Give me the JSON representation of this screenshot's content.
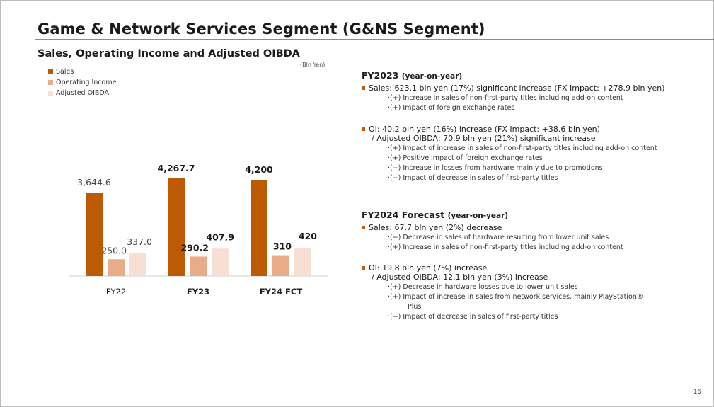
{
  "page": {
    "title": "Game & Network Services Segment (G&NS Segment)",
    "subtitle": "Sales, Operating Income and Adjusted OIBDA",
    "unit": "(Bln Yen)",
    "page_number": "16"
  },
  "colors": {
    "sales": "#bd5b05",
    "oi": "#e7ad89",
    "oibda": "#f7e0d3",
    "bullet": "#c05a07"
  },
  "legend": [
    "Sales",
    "Operating Income",
    "Adjusted OIBDA"
  ],
  "chart_data": {
    "type": "bar",
    "categories": [
      "FY22",
      "FY23",
      "FY24 FCT"
    ],
    "series": [
      {
        "name": "Sales",
        "values": [
          3644.6,
          4267.7,
          4200
        ],
        "labels": [
          "3,644.6",
          "4,267.7",
          "4,200"
        ]
      },
      {
        "name": "Operating Income",
        "values": [
          250.0,
          290.2,
          310
        ],
        "labels": [
          "250.0",
          "290.2",
          "310"
        ]
      },
      {
        "name": "Adjusted OIBDA",
        "values": [
          337.0,
          407.9,
          420
        ],
        "labels": [
          "337.0",
          "407.9",
          "420"
        ]
      }
    ],
    "bold_categories": [
      false,
      true,
      true
    ],
    "grid": false,
    "legend_position": "top-left"
  },
  "fy2023": {
    "heading": "FY2023",
    "heading_small": "(year-on-year)",
    "sales": {
      "text": "Sales: 623.1 bln yen (17%) significant increase (FX Impact: +278.9 bln yen)",
      "points": [
        "·(+) Increase in sales of non-first-party titles including add-on content",
        "·(+) Impact of foreign exchange rates"
      ]
    },
    "oi": {
      "text": "OI:  40.2 bln yen (16%) increase  (FX Impact: +38.6 bln yen)",
      "text2": "/ Adjusted OIBDA: 70.9 bln yen (21%) significant increase",
      "points": [
        "·(+) Impact of increase in sales of non-first-party titles including add-on content",
        "·(+) Positive impact of foreign exchange rates",
        "·(−) Increase in losses from hardware mainly due to promotions",
        "·(−) Impact of decrease in sales of first-party titles"
      ]
    }
  },
  "fy2024": {
    "heading": "FY2024 Forecast",
    "heading_small": "(year-on-year)",
    "sales": {
      "text": "Sales: 67.7 bln yen (2%) decrease",
      "points": [
        "·(−) Decrease in sales of hardware resulting from lower unit sales",
        "·(+) Increase in sales of non-first-party titles including add-on content"
      ]
    },
    "oi": {
      "text": "OI: 19.8 bln yen (7%) increase",
      "text2": "/ Adjusted OIBDA: 12.1 bln yen  (3%) increase",
      "points": [
        "·(+) Decrease in hardware losses due to lower unit sales",
        "·(+) Impact of increase in sales from network services, mainly PlayStation®",
        "Plus",
        "·(−) Impact of decrease in sales of first-party titles"
      ]
    }
  }
}
